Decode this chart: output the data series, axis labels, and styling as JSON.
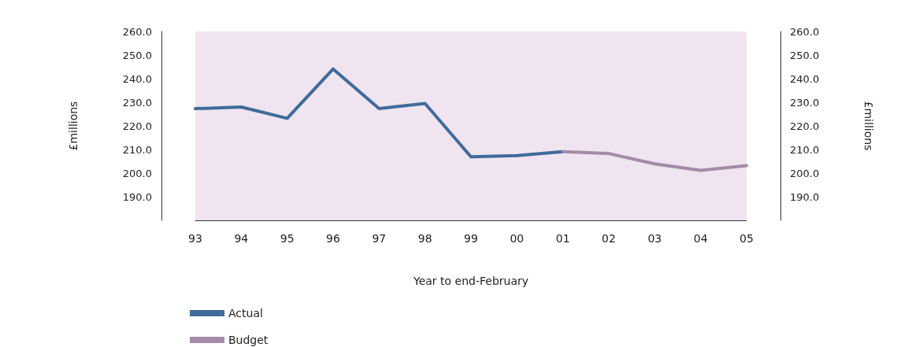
{
  "chart_data": {
    "type": "line",
    "xlabel": "Year to end-February",
    "ylabel": "£millions",
    "y2label": "£millions",
    "categories": [
      "93",
      "94",
      "95",
      "96",
      "97",
      "98",
      "99",
      "00",
      "01",
      "02",
      "03",
      "04",
      "05"
    ],
    "series": [
      {
        "name": "Actual",
        "color": "#3e6b9a",
        "values": [
          227.3,
          228.0,
          223.2,
          244.1,
          227.3,
          229.5,
          206.9,
          207.4,
          209.1,
          null,
          null,
          null,
          null
        ]
      },
      {
        "name": "Budget",
        "color": "#a58aa8",
        "values": [
          null,
          null,
          null,
          null,
          null,
          null,
          null,
          null,
          209.1,
          208.3,
          203.9,
          201.2,
          203.2
        ]
      }
    ],
    "ylim": [
      180,
      260
    ],
    "yticks": [
      {
        "value": 180,
        "label": null
      },
      {
        "value": 190,
        "label": "190.0"
      },
      {
        "value": 200,
        "label": "200.0"
      },
      {
        "value": 210,
        "label": "210.0"
      },
      {
        "value": 220,
        "label": "220.0"
      },
      {
        "value": 230,
        "label": "230.0"
      },
      {
        "value": 240,
        "label": "240.0"
      },
      {
        "value": 250,
        "label": "250.0"
      },
      {
        "value": 260,
        "label": "260.0"
      }
    ],
    "y2lim": [
      180,
      260
    ],
    "y2ticks": [
      {
        "value": 180,
        "label": null
      },
      {
        "value": 190,
        "label": "190.0"
      },
      {
        "value": 200,
        "label": "200.0"
      },
      {
        "value": 210,
        "label": "210.0"
      },
      {
        "value": 220,
        "label": "220.0"
      },
      {
        "value": 230,
        "label": "230.0"
      },
      {
        "value": 240,
        "label": "240.0"
      },
      {
        "value": 250,
        "label": "250.0"
      },
      {
        "value": 260,
        "label": "260.0"
      }
    ],
    "grid": false,
    "legend": "bottom left",
    "marker": "none",
    "line_style": "solid"
  }
}
